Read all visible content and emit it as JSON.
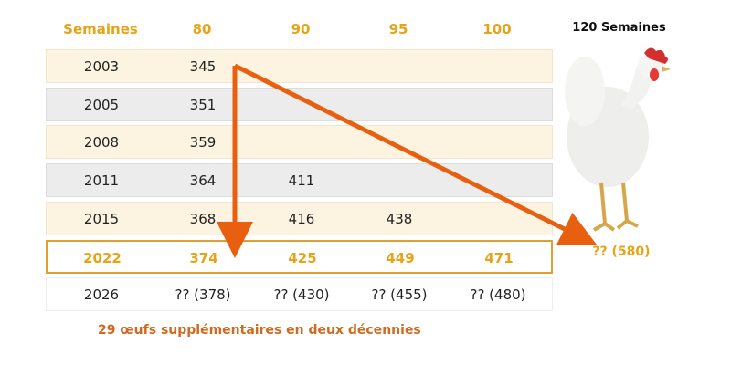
{
  "table": {
    "header": [
      "Semaines",
      "80",
      "90",
      "95",
      "100"
    ],
    "rows": [
      [
        "2003",
        "345"
      ],
      [
        "2005",
        "351"
      ],
      [
        "2008",
        "359"
      ],
      [
        "2011",
        "364",
        "411"
      ],
      [
        "2015",
        "368",
        "416",
        "438"
      ],
      [
        "2022",
        "374",
        "425",
        "449",
        "471"
      ],
      [
        "2026",
        "?? (378)",
        "?? (430)",
        "?? (455)",
        "?? (480)"
      ]
    ]
  },
  "side": {
    "title": "120 Semaines",
    "projection": "?? (580)"
  },
  "footnote": "29 œufs supplémentaires en deux décennies"
}
